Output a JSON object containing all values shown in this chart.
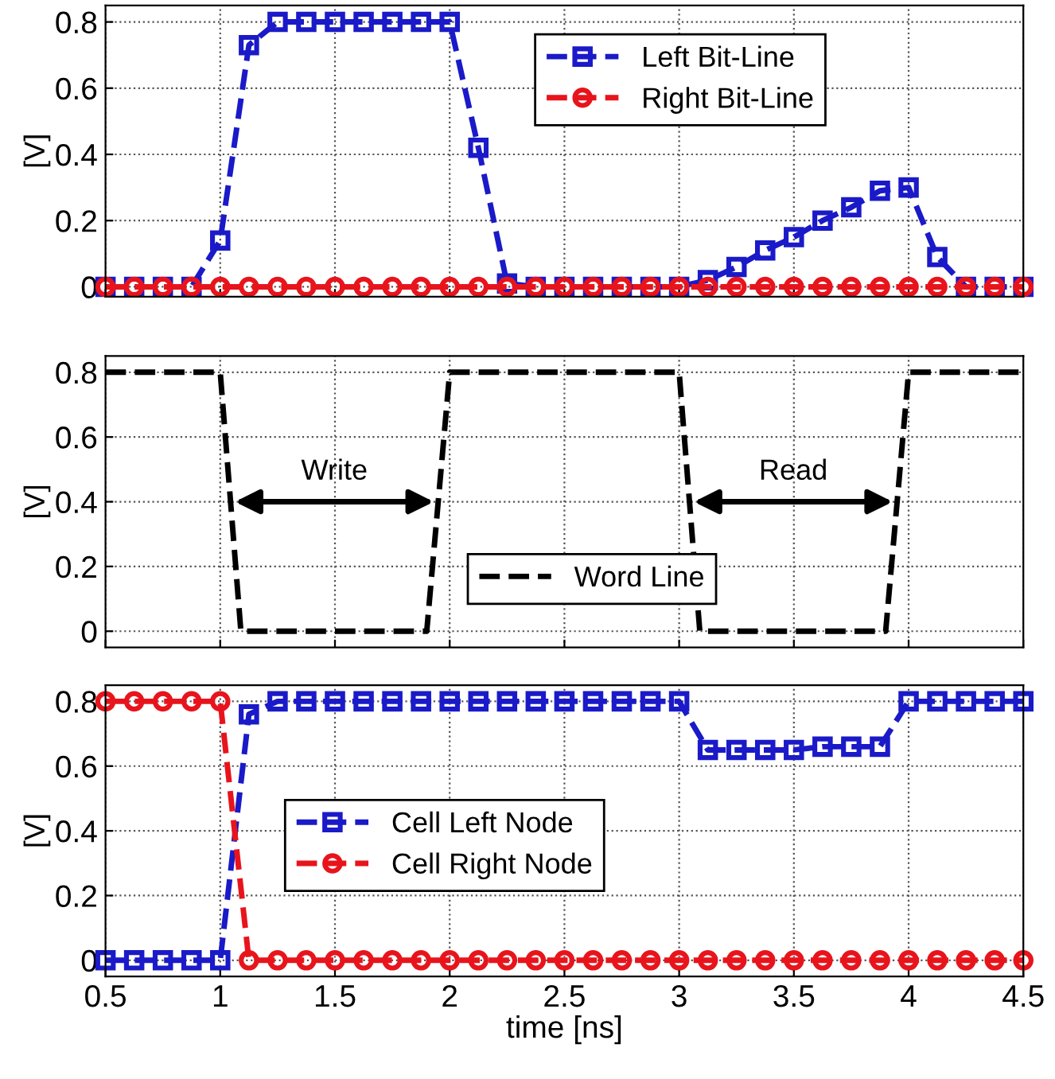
{
  "chart_data": [
    {
      "type": "line",
      "ylabel": "[V]",
      "xlim": [
        0.5,
        4.5
      ],
      "xticks": [
        0.5,
        1,
        1.5,
        2,
        2.5,
        3,
        3.5,
        4,
        4.5
      ],
      "ylim": [
        -0.03,
        0.85
      ],
      "yticks": [
        0,
        0.2,
        0.4,
        0.6,
        0.8
      ],
      "grid": true,
      "legend": "top right",
      "tick_labels": "y",
      "line_style": "dashed",
      "x": [
        0.5,
        0.625,
        0.75,
        0.875,
        1.0,
        1.125,
        1.25,
        1.375,
        1.5,
        1.625,
        1.75,
        1.875,
        2.0,
        2.125,
        2.25,
        2.375,
        2.5,
        2.625,
        2.75,
        2.875,
        3.0,
        3.125,
        3.25,
        3.375,
        3.5,
        3.625,
        3.75,
        3.875,
        4.0,
        4.125,
        4.25,
        4.375,
        4.5
      ],
      "series": [
        {
          "name": "Left Bit-Line",
          "color": "#1a1ac8",
          "marker": "square",
          "values": [
            0,
            0,
            0,
            0,
            0.14,
            0.73,
            0.8,
            0.8,
            0.8,
            0.8,
            0.8,
            0.8,
            0.8,
            0.42,
            0.01,
            0,
            0,
            0,
            0,
            0,
            0,
            0.02,
            0.06,
            0.11,
            0.15,
            0.2,
            0.24,
            0.29,
            0.3,
            0.09,
            0,
            0,
            0
          ]
        },
        {
          "name": "Right Bit-Line",
          "color": "#e8141c",
          "marker": "circle",
          "values": [
            0,
            0,
            0,
            0,
            0,
            0,
            0,
            0,
            0,
            0,
            0,
            0,
            0,
            0,
            0,
            0,
            0,
            0,
            0,
            0,
            0,
            0,
            0,
            0,
            0,
            0,
            0,
            0,
            0,
            0,
            0,
            0,
            0
          ]
        }
      ]
    },
    {
      "type": "line",
      "ylabel": "[V]",
      "xlim": [
        0.5,
        4.5
      ],
      "xticks": [
        0.5,
        1,
        1.5,
        2,
        2.5,
        3,
        3.5,
        4,
        4.5
      ],
      "ylim": [
        -0.05,
        0.85
      ],
      "yticks": [
        0,
        0.2,
        0.4,
        0.6,
        0.8
      ],
      "grid": true,
      "legend": "bottom",
      "tick_labels": "y",
      "line_style": "dashed",
      "marker": "none",
      "annotations": [
        "Write",
        "Read"
      ],
      "series": [
        {
          "name": "Word Line",
          "color": "#000000",
          "x": [
            0.5,
            1.0,
            1.09,
            1.9,
            2.0,
            3.0,
            3.09,
            3.9,
            4.0,
            4.5
          ],
          "values": [
            0.8,
            0.8,
            0,
            0,
            0.8,
            0.8,
            0,
            0,
            0.8,
            0.8
          ]
        }
      ]
    },
    {
      "type": "line",
      "xlabel": "time [ns]",
      "ylabel": "[V]",
      "xlim": [
        0.5,
        4.5
      ],
      "xticks": [
        0.5,
        1,
        1.5,
        2,
        2.5,
        3,
        3.5,
        4,
        4.5
      ],
      "ylim": [
        -0.05,
        0.85
      ],
      "yticks": [
        0,
        0.2,
        0.4,
        0.6,
        0.8
      ],
      "grid": true,
      "legend": "left",
      "line_style": "dashed",
      "x": [
        0.5,
        0.625,
        0.75,
        0.875,
        1.0,
        1.125,
        1.25,
        1.375,
        1.5,
        1.625,
        1.75,
        1.875,
        2.0,
        2.125,
        2.25,
        2.375,
        2.5,
        2.625,
        2.75,
        2.875,
        3.0,
        3.125,
        3.25,
        3.375,
        3.5,
        3.625,
        3.75,
        3.875,
        4.0,
        4.125,
        4.25,
        4.375,
        4.5
      ],
      "series": [
        {
          "name": "Cell Left Node",
          "color": "#1a1ac8",
          "marker": "square",
          "values": [
            0,
            0,
            0,
            0,
            0,
            0.76,
            0.8,
            0.8,
            0.8,
            0.8,
            0.8,
            0.8,
            0.8,
            0.8,
            0.8,
            0.8,
            0.8,
            0.8,
            0.8,
            0.8,
            0.8,
            0.65,
            0.65,
            0.65,
            0.65,
            0.66,
            0.66,
            0.66,
            0.8,
            0.8,
            0.8,
            0.8,
            0.8
          ]
        },
        {
          "name": "Cell Right Node",
          "color": "#e8141c",
          "marker": "circle",
          "values": [
            0.8,
            0.8,
            0.8,
            0.8,
            0.8,
            0,
            0,
            0,
            0,
            0,
            0,
            0,
            0,
            0,
            0,
            0,
            0,
            0,
            0,
            0,
            0,
            0,
            0,
            0,
            0,
            0,
            0,
            0,
            0,
            0,
            0,
            0,
            0
          ]
        }
      ]
    }
  ]
}
